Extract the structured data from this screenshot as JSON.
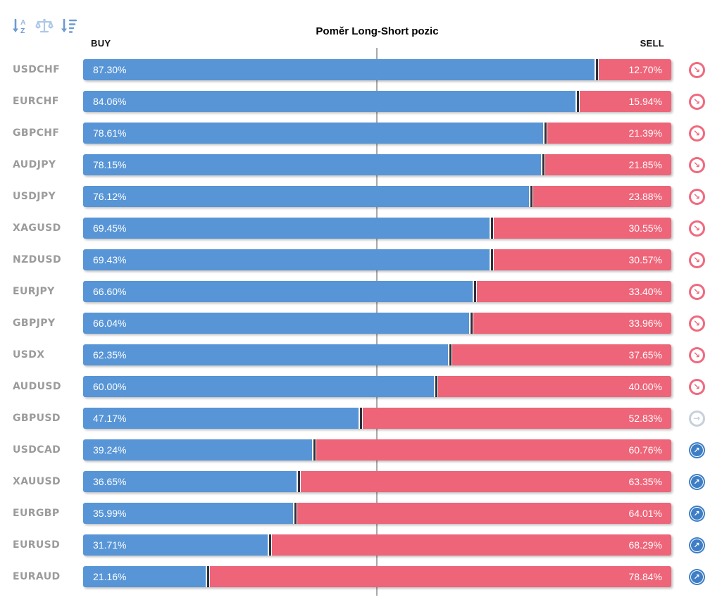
{
  "toolbar": {
    "buttons": [
      {
        "name": "sort-alphabetical-button",
        "icon": "sort-alpha-down-icon"
      },
      {
        "name": "sort-balance-button",
        "icon": "balance-scale-icon"
      },
      {
        "name": "sort-by-value-button",
        "icon": "sort-amount-down-icon"
      }
    ]
  },
  "header": {
    "title": "Poměr Long-Short pozic",
    "buy_label": "BUY",
    "sell_label": "SELL"
  },
  "chart_data": {
    "type": "bar",
    "orientation": "horizontal-stacked",
    "title": "Poměr Long-Short pozic",
    "column_headers": [
      "BUY",
      "SELL"
    ],
    "categories": [
      "USDCHF",
      "EURCHF",
      "GBPCHF",
      "AUDJPY",
      "USDJPY",
      "XAGUSD",
      "NZDUSD",
      "EURJPY",
      "GBPJPY",
      "USDX",
      "AUDUSD",
      "GBPUSD",
      "USDCAD",
      "XAUUSD",
      "EURGBP",
      "EURUSD",
      "EURAUD"
    ],
    "series": [
      {
        "name": "BUY",
        "values": [
          87.3,
          84.06,
          78.61,
          78.15,
          76.12,
          69.45,
          69.43,
          66.6,
          66.04,
          62.35,
          60.0,
          47.17,
          39.24,
          36.65,
          35.99,
          31.71,
          21.16
        ]
      },
      {
        "name": "SELL",
        "values": [
          12.7,
          15.94,
          21.39,
          21.85,
          23.88,
          30.55,
          30.57,
          33.4,
          33.96,
          37.65,
          40.0,
          52.83,
          60.76,
          63.35,
          64.01,
          68.29,
          78.84
        ]
      }
    ],
    "xlim": [
      0,
      100
    ],
    "midline": 50,
    "grid": false,
    "legend_position": "none",
    "colors": {
      "buy": "#5795d6",
      "sell": "#ee6478",
      "separator": "#30303a",
      "midline": "#a9a9a9",
      "pair_label": "#9b9b9b",
      "down_icon": "#f0697e",
      "neutral_icon": "#c7d0dc",
      "up_icon": "#3d7ec6"
    }
  },
  "signal_icons": {
    "down": {
      "glyph": "↘",
      "style": "outline"
    },
    "neutral": {
      "glyph": "→",
      "style": "outline"
    },
    "up": {
      "glyph": "↗",
      "style": "filled"
    }
  },
  "rows": [
    {
      "pair": "USDCHF",
      "buy": 87.3,
      "sell": 12.7,
      "buy_label": "87.30%",
      "sell_label": "12.70%",
      "signal": "down"
    },
    {
      "pair": "EURCHF",
      "buy": 84.06,
      "sell": 15.94,
      "buy_label": "84.06%",
      "sell_label": "15.94%",
      "signal": "down"
    },
    {
      "pair": "GBPCHF",
      "buy": 78.61,
      "sell": 21.39,
      "buy_label": "78.61%",
      "sell_label": "21.39%",
      "signal": "down"
    },
    {
      "pair": "AUDJPY",
      "buy": 78.15,
      "sell": 21.85,
      "buy_label": "78.15%",
      "sell_label": "21.85%",
      "signal": "down"
    },
    {
      "pair": "USDJPY",
      "buy": 76.12,
      "sell": 23.88,
      "buy_label": "76.12%",
      "sell_label": "23.88%",
      "signal": "down"
    },
    {
      "pair": "XAGUSD",
      "buy": 69.45,
      "sell": 30.55,
      "buy_label": "69.45%",
      "sell_label": "30.55%",
      "signal": "down"
    },
    {
      "pair": "NZDUSD",
      "buy": 69.43,
      "sell": 30.57,
      "buy_label": "69.43%",
      "sell_label": "30.57%",
      "signal": "down"
    },
    {
      "pair": "EURJPY",
      "buy": 66.6,
      "sell": 33.4,
      "buy_label": "66.60%",
      "sell_label": "33.40%",
      "signal": "down"
    },
    {
      "pair": "GBPJPY",
      "buy": 66.04,
      "sell": 33.96,
      "buy_label": "66.04%",
      "sell_label": "33.96%",
      "signal": "down"
    },
    {
      "pair": "USDX",
      "buy": 62.35,
      "sell": 37.65,
      "buy_label": "62.35%",
      "sell_label": "37.65%",
      "signal": "down"
    },
    {
      "pair": "AUDUSD",
      "buy": 60.0,
      "sell": 40.0,
      "buy_label": "60.00%",
      "sell_label": "40.00%",
      "signal": "down"
    },
    {
      "pair": "GBPUSD",
      "buy": 47.17,
      "sell": 52.83,
      "buy_label": "47.17%",
      "sell_label": "52.83%",
      "signal": "neutral"
    },
    {
      "pair": "USDCAD",
      "buy": 39.24,
      "sell": 60.76,
      "buy_label": "39.24%",
      "sell_label": "60.76%",
      "signal": "up"
    },
    {
      "pair": "XAUUSD",
      "buy": 36.65,
      "sell": 63.35,
      "buy_label": "36.65%",
      "sell_label": "63.35%",
      "signal": "up"
    },
    {
      "pair": "EURGBP",
      "buy": 35.99,
      "sell": 64.01,
      "buy_label": "35.99%",
      "sell_label": "64.01%",
      "signal": "up"
    },
    {
      "pair": "EURUSD",
      "buy": 31.71,
      "sell": 68.29,
      "buy_label": "31.71%",
      "sell_label": "68.29%",
      "signal": "up"
    },
    {
      "pair": "EURAUD",
      "buy": 21.16,
      "sell": 78.84,
      "buy_label": "21.16%",
      "sell_label": "78.84%",
      "signal": "up"
    }
  ]
}
